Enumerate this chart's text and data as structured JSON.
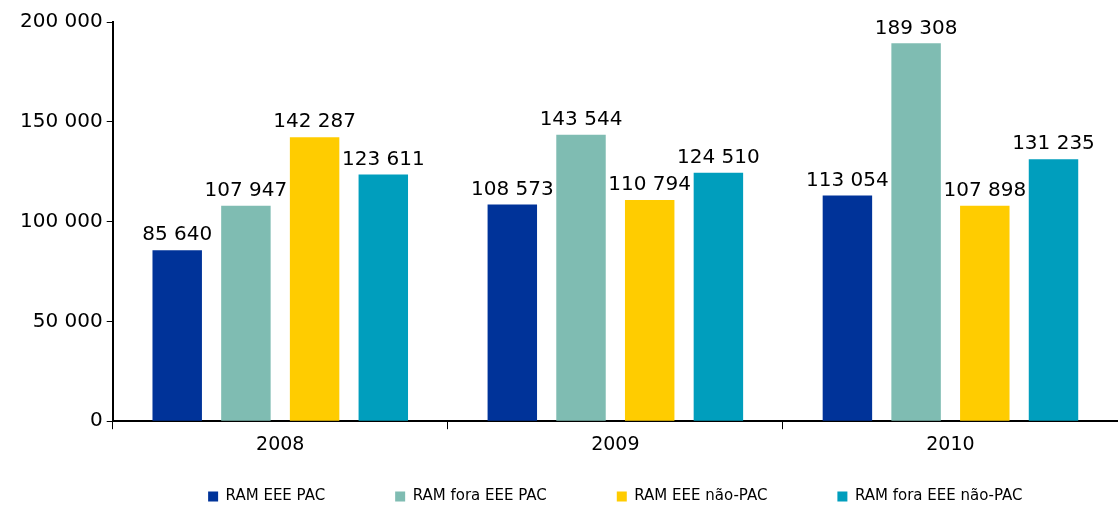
{
  "chart_data": {
    "type": "bar",
    "categories": [
      "2008",
      "2009",
      "2010"
    ],
    "series": [
      {
        "name": "RAM EEE PAC",
        "color": "#003399",
        "values": [
          85640,
          108573,
          113054
        ]
      },
      {
        "name": "RAM fora EEE PAC",
        "color": "#7fbcb2",
        "values": [
          107947,
          143544,
          189308
        ]
      },
      {
        "name": "RAM EEE não-PAC",
        "color": "#ffcc00",
        "values": [
          142287,
          110794,
          107898
        ]
      },
      {
        "name": "RAM fora EEE não-PAC",
        "color": "#009ebd",
        "values": [
          123611,
          124510,
          131235
        ]
      }
    ],
    "ylim": [
      0,
      200000
    ],
    "yticks": [
      0,
      50000,
      100000,
      150000,
      200000
    ],
    "grid": false,
    "legend": "bottom",
    "data_labels": true
  }
}
